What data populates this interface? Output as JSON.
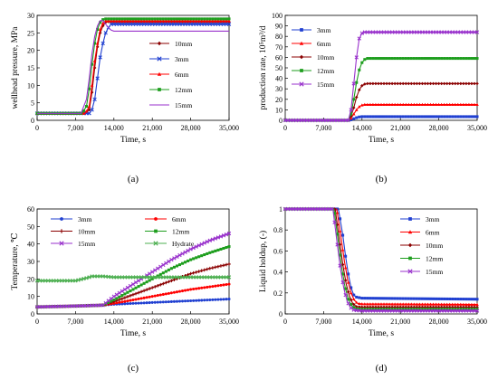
{
  "chart_data": [
    {
      "panel": "(a)",
      "type": "line",
      "xlabel": "Time, s",
      "ylabel": "wellhead pressure, MPa",
      "xlim": [
        0,
        35000
      ],
      "ylim": [
        0,
        30
      ],
      "xticks": [
        0,
        7000,
        14000,
        21000,
        28000,
        35000
      ],
      "xtick_labels": [
        "0",
        "7,000",
        "14,000",
        "21,000",
        "28,000",
        "35,000"
      ],
      "yticks": [
        0,
        5,
        10,
        15,
        20,
        25,
        30
      ],
      "ytick_labels": [
        "0",
        "5",
        "10",
        "15",
        "20",
        "25",
        "30"
      ],
      "legend_position": "right",
      "series": [
        {
          "name": "10mm",
          "color": "#8B0000",
          "marker": "diamond",
          "x": [
            0,
            8500,
            9500,
            10000,
            10500,
            11000,
            11500,
            12000,
            12500,
            13000,
            35000
          ],
          "y": [
            2,
            2,
            3,
            8,
            15,
            21,
            25,
            27,
            28,
            28.2,
            28.2
          ]
        },
        {
          "name": "3mm",
          "color": "#1F3FD1",
          "marker": "x",
          "x": [
            0,
            9500,
            10000,
            10500,
            11000,
            11500,
            12000,
            12500,
            13000,
            13500,
            35000
          ],
          "y": [
            2,
            2,
            3,
            6,
            12,
            18,
            22,
            25,
            26.5,
            27.5,
            27.5
          ]
        },
        {
          "name": "6mm",
          "color": "#FF0000",
          "marker": "triangle",
          "x": [
            0,
            8800,
            9500,
            10000,
            10500,
            11000,
            11500,
            12000,
            12500,
            35000
          ],
          "y": [
            2,
            2,
            4,
            10,
            17,
            22,
            26,
            27.8,
            28.4,
            28.4
          ]
        },
        {
          "name": "12mm",
          "color": "#1E9E1E",
          "marker": "square",
          "x": [
            0,
            8200,
            9000,
            9500,
            10000,
            10500,
            11000,
            11500,
            12000,
            12500,
            35000
          ],
          "y": [
            2,
            2,
            4,
            9,
            16,
            22,
            26,
            28,
            28.8,
            29,
            29
          ]
        },
        {
          "name": "15mm",
          "color": "#9932CC",
          "marker": "none",
          "x": [
            0,
            8000,
            9000,
            9500,
            10000,
            10500,
            11000,
            11500,
            12000,
            12500,
            13000,
            13500,
            14000,
            35000
          ],
          "y": [
            2,
            2,
            6,
            12,
            19,
            24,
            27,
            28.5,
            28.5,
            27.5,
            26.5,
            25.8,
            25.5,
            25.5
          ]
        }
      ]
    },
    {
      "panel": "(b)",
      "type": "line",
      "xlabel": "Time, s",
      "ylabel": "production rate, 10⁵m³/d",
      "xlim": [
        0,
        35000
      ],
      "ylim": [
        0,
        100
      ],
      "xticks": [
        0,
        7000,
        14000,
        21000,
        28000,
        35000
      ],
      "xtick_labels": [
        "0",
        "7,000",
        "14,000",
        "21,000",
        "28,000",
        "35,000"
      ],
      "yticks": [
        0,
        10,
        20,
        30,
        40,
        50,
        60,
        70,
        80,
        90,
        100
      ],
      "ytick_labels": [
        "0",
        "10",
        "20",
        "30",
        "40",
        "50",
        "60",
        "70",
        "80",
        "90",
        "100"
      ],
      "legend_position": "left",
      "series": [
        {
          "name": "3mm",
          "color": "#1F3FD1",
          "marker": "square",
          "x": [
            0,
            11500,
            12000,
            12500,
            13000,
            13500,
            14000,
            35000
          ],
          "y": [
            0,
            0,
            0.5,
            1.5,
            2.5,
            3.2,
            3.5,
            3.5
          ]
        },
        {
          "name": "6mm",
          "color": "#FF0000",
          "marker": "triangle",
          "x": [
            0,
            11500,
            12000,
            12500,
            13000,
            13500,
            14000,
            14500,
            35000
          ],
          "y": [
            0,
            0,
            2,
            6,
            10,
            13,
            14.5,
            15,
            15
          ]
        },
        {
          "name": "10mm",
          "color": "#8B0000",
          "marker": "diamond",
          "x": [
            0,
            11500,
            12000,
            12500,
            13000,
            13500,
            14000,
            14500,
            15000,
            35000
          ],
          "y": [
            0,
            0,
            4,
            12,
            22,
            29,
            33,
            34.5,
            35,
            35
          ]
        },
        {
          "name": "12mm",
          "color": "#1E9E1E",
          "marker": "square",
          "x": [
            0,
            11500,
            12000,
            12500,
            13000,
            13500,
            14000,
            14500,
            15000,
            35000
          ],
          "y": [
            0,
            0,
            6,
            20,
            36,
            48,
            55,
            58,
            59,
            59
          ]
        },
        {
          "name": "15mm",
          "color": "#9932CC",
          "marker": "x",
          "x": [
            0,
            11500,
            12000,
            12500,
            13000,
            13500,
            14000,
            14500,
            35000
          ],
          "y": [
            0,
            0,
            10,
            35,
            60,
            78,
            83,
            84,
            84
          ]
        }
      ]
    },
    {
      "panel": "(c)",
      "type": "line",
      "xlabel": "Time, s",
      "ylabel": "Temperature, ℃",
      "xlim": [
        0,
        35000
      ],
      "ylim": [
        0,
        60
      ],
      "xticks": [
        0,
        7000,
        14000,
        21000,
        28000,
        35000
      ],
      "xtick_labels": [
        "0",
        "7,000",
        "14,000",
        "21,000",
        "28,000",
        "35,000"
      ],
      "yticks": [
        0,
        10,
        20,
        30,
        40,
        50,
        60
      ],
      "ytick_labels": [
        "0",
        "10",
        "20",
        "30",
        "40",
        "50",
        "60"
      ],
      "legend_position": "top",
      "series": [
        {
          "name": "3mm",
          "color": "#1F3FD1",
          "marker": "circle",
          "x": [
            0,
            7000,
            12000,
            14000,
            17500,
            21000,
            24500,
            28000,
            31500,
            35000
          ],
          "y": [
            4,
            4.5,
            5,
            5.5,
            6,
            6.5,
            7,
            7.5,
            8,
            8.5
          ]
        },
        {
          "name": "6mm",
          "color": "#FF0000",
          "marker": "circle",
          "x": [
            0,
            7000,
            12000,
            14000,
            17500,
            21000,
            24500,
            28000,
            31500,
            35000
          ],
          "y": [
            4,
            4.5,
            5,
            6,
            8,
            10,
            12,
            14,
            15.5,
            17
          ]
        },
        {
          "name": "10mm",
          "color": "#8B0000",
          "marker": "plus",
          "x": [
            0,
            7000,
            12000,
            14000,
            17500,
            21000,
            24500,
            28000,
            31500,
            35000
          ],
          "y": [
            4,
            4.5,
            5,
            7,
            11,
            15,
            19,
            23,
            26,
            28.5
          ]
        },
        {
          "name": "12mm",
          "color": "#1E9E1E",
          "marker": "square",
          "x": [
            0,
            7000,
            12000,
            14000,
            17500,
            21000,
            24500,
            28000,
            31500,
            35000
          ],
          "y": [
            4,
            4.5,
            5,
            8,
            14,
            20,
            26,
            31,
            35,
            38.5
          ]
        },
        {
          "name": "15mm",
          "color": "#9932CC",
          "marker": "x",
          "x": [
            0,
            7000,
            12000,
            14000,
            17500,
            21000,
            24500,
            28000,
            31500,
            35000
          ],
          "y": [
            4,
            4.5,
            5,
            10,
            17,
            24,
            31,
            37,
            42,
            46
          ]
        },
        {
          "name": "Hydrate",
          "color": "#4CAF50",
          "marker": "x",
          "x": [
            0,
            7000,
            9000,
            10000,
            12000,
            14000,
            21000,
            28000,
            35000
          ],
          "y": [
            19,
            19,
            20.5,
            21.5,
            21.5,
            21,
            21,
            21,
            21
          ]
        }
      ]
    },
    {
      "panel": "(d)",
      "type": "line",
      "xlabel": "Time, s",
      "ylabel": "Liquid holdup,  (-)",
      "xlim": [
        0,
        35000
      ],
      "ylim": [
        0,
        1
      ],
      "xticks": [
        0,
        7000,
        14000,
        21000,
        28000,
        35000
      ],
      "xtick_labels": [
        "0",
        "7,000",
        "14,000",
        "21,000",
        "28,000",
        "35,000"
      ],
      "yticks": [
        0,
        0.2,
        0.4,
        0.6,
        0.8,
        1
      ],
      "ytick_labels": [
        "0",
        "0.2",
        "0.4",
        "0.6",
        "0.8",
        "1"
      ],
      "legend_position": "right",
      "series": [
        {
          "name": "3mm",
          "color": "#1F3FD1",
          "marker": "square",
          "x": [
            0,
            9700,
            10500,
            11000,
            11500,
            12000,
            12500,
            13000,
            14000,
            35000
          ],
          "y": [
            1,
            1,
            0.75,
            0.55,
            0.38,
            0.25,
            0.18,
            0.16,
            0.15,
            0.14
          ]
        },
        {
          "name": "6mm",
          "color": "#FF0000",
          "marker": "triangle",
          "x": [
            0,
            9400,
            10200,
            10800,
            11400,
            12000,
            12600,
            13200,
            14000,
            35000
          ],
          "y": [
            1,
            1,
            0.72,
            0.5,
            0.32,
            0.2,
            0.13,
            0.1,
            0.095,
            0.09
          ]
        },
        {
          "name": "10mm",
          "color": "#8B0000",
          "marker": "diamond",
          "x": [
            0,
            9100,
            9900,
            10500,
            11100,
            11700,
            12300,
            13000,
            14000,
            35000
          ],
          "y": [
            1,
            1,
            0.7,
            0.47,
            0.29,
            0.17,
            0.1,
            0.07,
            0.065,
            0.065
          ]
        },
        {
          "name": "12mm",
          "color": "#1E9E1E",
          "marker": "square",
          "x": [
            0,
            8900,
            9700,
            10300,
            10900,
            11500,
            12100,
            12800,
            14000,
            35000
          ],
          "y": [
            1,
            1,
            0.68,
            0.44,
            0.26,
            0.14,
            0.08,
            0.05,
            0.045,
            0.045
          ]
        },
        {
          "name": "15mm",
          "color": "#9932CC",
          "marker": "x",
          "x": [
            0,
            8700,
            9500,
            10100,
            10700,
            11300,
            11900,
            12600,
            14000,
            35000
          ],
          "y": [
            1,
            1,
            0.66,
            0.42,
            0.24,
            0.12,
            0.06,
            0.035,
            0.03,
            0.03
          ]
        }
      ]
    }
  ]
}
